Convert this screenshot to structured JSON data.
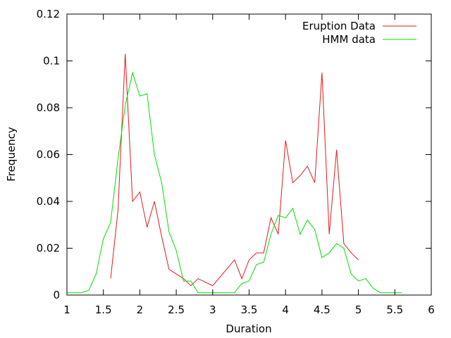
{
  "chart_data": {
    "type": "line",
    "title": "",
    "xlabel": "Duration",
    "ylabel": "Frequency",
    "xlim": [
      1,
      6
    ],
    "ylim": [
      0,
      0.12
    ],
    "xticks": [
      "1",
      "1.5",
      "2",
      "2.5",
      "3",
      "3.5",
      "4",
      "4.5",
      "5",
      "5.5",
      "6"
    ],
    "xtick_values": [
      1,
      1.5,
      2,
      2.5,
      3,
      3.5,
      4,
      4.5,
      5,
      5.5,
      6
    ],
    "yticks": [
      "0",
      "0.02",
      "0.04",
      "0.06",
      "0.08",
      "0.1",
      "0.12"
    ],
    "ytick_values": [
      0,
      0.02,
      0.04,
      0.06,
      0.08,
      0.1,
      0.12
    ],
    "grid": false,
    "legend_position": "top-right",
    "series": [
      {
        "name": "Eruption Data",
        "color": "#e41a1c",
        "x": [
          1.6,
          1.7,
          1.8,
          1.9,
          2.0,
          2.1,
          2.2,
          2.3,
          2.4,
          2.5,
          2.6,
          2.7,
          2.8,
          3.0,
          3.3,
          3.4,
          3.5,
          3.6,
          3.7,
          3.8,
          3.9,
          4.0,
          4.1,
          4.2,
          4.3,
          4.4,
          4.5,
          4.6,
          4.7,
          4.8,
          4.9,
          5.0
        ],
        "y": [
          0.007,
          0.036,
          0.103,
          0.04,
          0.044,
          0.029,
          0.04,
          0.025,
          0.011,
          0.009,
          0.007,
          0.004,
          0.007,
          0.004,
          0.015,
          0.007,
          0.015,
          0.018,
          0.018,
          0.033,
          0.026,
          0.066,
          0.048,
          0.051,
          0.055,
          0.048,
          0.095,
          0.026,
          0.062,
          0.022,
          0.018,
          0.015
        ]
      },
      {
        "name": "HMM data",
        "color": "#00e000",
        "x": [
          1.0,
          1.1,
          1.2,
          1.3,
          1.4,
          1.5,
          1.6,
          1.7,
          1.8,
          1.9,
          2.0,
          2.1,
          2.2,
          2.3,
          2.4,
          2.5,
          2.6,
          2.7,
          2.8,
          2.9,
          3.0,
          3.1,
          3.2,
          3.3,
          3.4,
          3.5,
          3.6,
          3.7,
          3.8,
          3.9,
          4.0,
          4.1,
          4.2,
          4.3,
          4.4,
          4.5,
          4.6,
          4.7,
          4.8,
          4.9,
          5.0,
          5.1,
          5.2,
          5.3,
          5.4,
          5.5,
          5.6
        ],
        "y": [
          0.001,
          0.001,
          0.001,
          0.002,
          0.009,
          0.024,
          0.031,
          0.058,
          0.081,
          0.095,
          0.085,
          0.086,
          0.06,
          0.048,
          0.027,
          0.019,
          0.006,
          0.006,
          0.001,
          0.001,
          0.001,
          0.001,
          0.001,
          0.001,
          0.005,
          0.006,
          0.013,
          0.014,
          0.026,
          0.034,
          0.033,
          0.037,
          0.026,
          0.032,
          0.028,
          0.016,
          0.018,
          0.022,
          0.02,
          0.009,
          0.006,
          0.007,
          0.003,
          0.001,
          0.001,
          0.001,
          0.001
        ]
      }
    ]
  }
}
